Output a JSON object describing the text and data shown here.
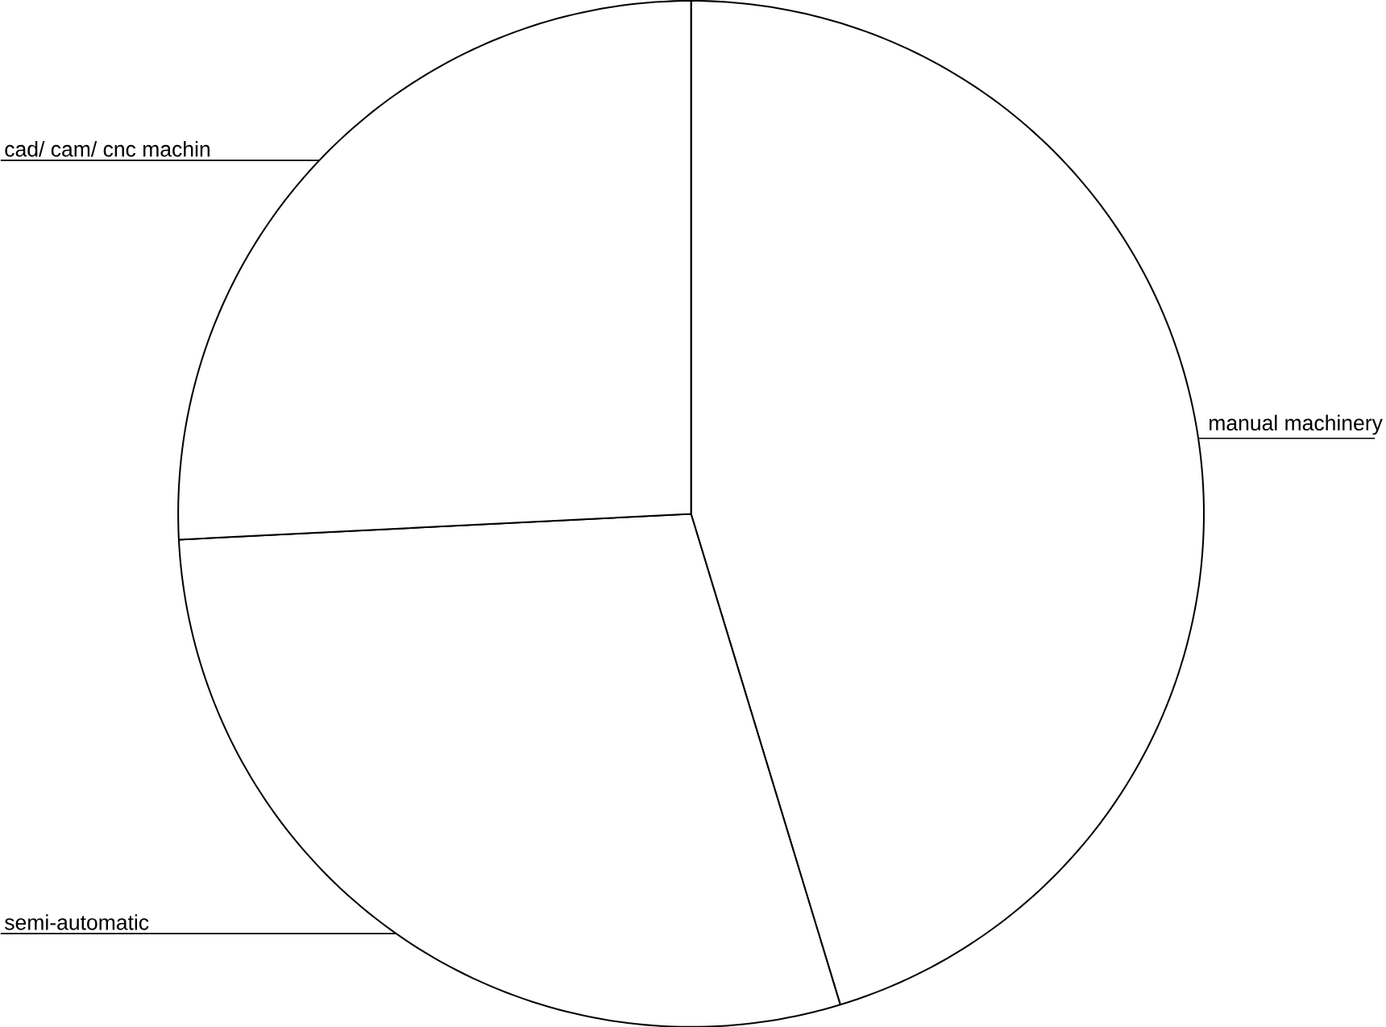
{
  "chart_data": {
    "type": "pie",
    "categories": [
      "manual machinery",
      "semi-automatic",
      "cad/ cam/ cnc machin"
    ],
    "values": [
      45.3,
      28.9,
      25.8
    ],
    "colors": [
      "#ffffff",
      "#ffffff",
      "#ffffff"
    ]
  }
}
